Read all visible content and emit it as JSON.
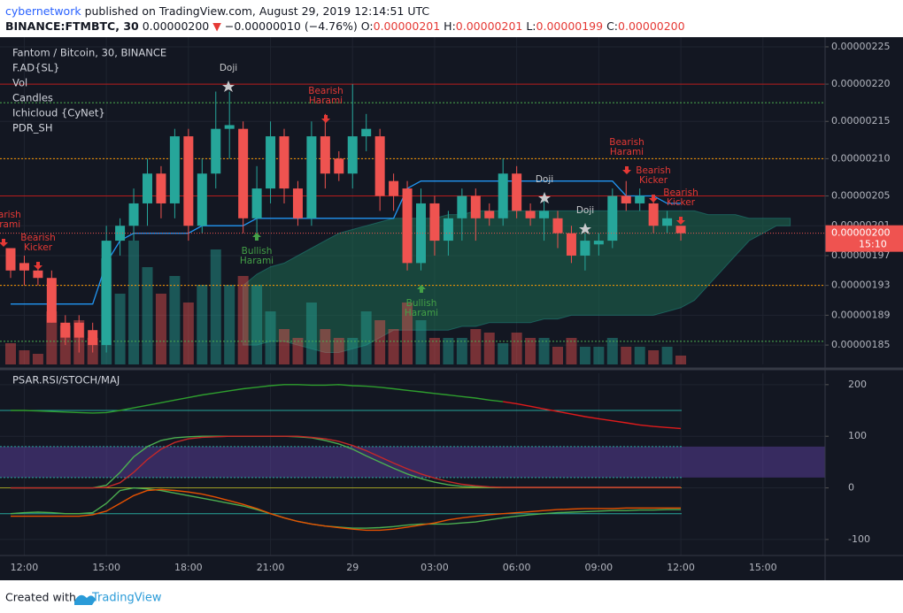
{
  "header": {
    "author": "cybernetwork",
    "published": "published on TradingView.com, August 29, 2019 12:14:51 UTC",
    "symbol": "BINANCE:FTMBTC, 30",
    "last": "0.00000200",
    "arrow": "▼",
    "change": "−0.00000010 (−4.76%)",
    "ohlc": [
      {
        "label": "O:",
        "value": "0.00000201"
      },
      {
        "label": "H:",
        "value": "0.00000201"
      },
      {
        "label": "L:",
        "value": "0.00000199"
      },
      {
        "label": "C:",
        "value": "0.00000200"
      }
    ]
  },
  "footer": {
    "created": "Created with",
    "brand": "TradingView"
  },
  "chart_data": [
    {
      "type": "candlestick",
      "title": "Fantom / Bitcoin, 30, BINANCE",
      "indicators": [
        "F.AD{SL}",
        "Vol",
        "Candles",
        "Ichicloud {CyNet}",
        "PDR_SH"
      ],
      "categories": [
        null,
        "12:00",
        null,
        null,
        null,
        null,
        null,
        "15:00",
        null,
        null,
        null,
        null,
        null,
        "18:00",
        null,
        null,
        null,
        null,
        null,
        "21:00",
        null,
        null,
        null,
        null,
        null,
        "29",
        null,
        null,
        null,
        null,
        null,
        "03:00",
        null,
        null,
        null,
        null,
        null,
        "06:00",
        null,
        null,
        null,
        null,
        null,
        "09:00",
        null,
        null,
        null,
        null,
        null,
        "12:00",
        null,
        null,
        null,
        null,
        null,
        "15:00",
        null,
        null,
        null,
        null
      ],
      "open": [
        1.98e-06,
        1.96e-06,
        1.95e-06,
        1.94e-06,
        1.88e-06,
        1.88e-06,
        1.87e-06,
        1.85e-06,
        1.99e-06,
        2.01e-06,
        2.04e-06,
        2.08e-06,
        2.04e-06,
        2.13e-06,
        2.01e-06,
        2.08e-06,
        2.14e-06,
        2.14e-06,
        2.02e-06,
        2.06e-06,
        2.13e-06,
        2.06e-06,
        2.02e-06,
        2.13e-06,
        2.1e-06,
        2.08e-06,
        2.13e-06,
        2.13e-06,
        2.07e-06,
        2.06e-06,
        1.96e-06,
        2.04e-06,
        1.99e-06,
        2.02e-06,
        2.05e-06,
        2.03e-06,
        2.02e-06,
        2.08e-06,
        2.03e-06,
        2.02e-06,
        2.02e-06,
        2e-06,
        1.97e-06,
        1.985e-06,
        1.99e-06,
        2.05e-06,
        2.04e-06,
        2.04e-06,
        2.01e-06,
        2.01e-06,
        null,
        null,
        null,
        null,
        null,
        null,
        null,
        null,
        null,
        null
      ],
      "high": [
        1.98e-06,
        1.97e-06,
        1.96e-06,
        1.95e-06,
        1.89e-06,
        1.89e-06,
        1.88e-06,
        2.01e-06,
        2.02e-06,
        2.06e-06,
        2.1e-06,
        2.09e-06,
        2.14e-06,
        2.14e-06,
        2.1e-06,
        2.19e-06,
        2.19e-06,
        2.15e-06,
        2.09e-06,
        2.15e-06,
        2.14e-06,
        2.07e-06,
        2.15e-06,
        2.16e-06,
        2.11e-06,
        2.2e-06,
        2.16e-06,
        2.14e-06,
        2.08e-06,
        2.07e-06,
        2.06e-06,
        2.05e-06,
        2.03e-06,
        2.06e-06,
        2.06e-06,
        2.04e-06,
        2.1e-06,
        2.09e-06,
        2.04e-06,
        2.05e-06,
        2.03e-06,
        2.01e-06,
        2e-06,
        2e-06,
        2.06e-06,
        2.07e-06,
        2.06e-06,
        2.05e-06,
        2.03e-06,
        2.01e-06,
        null,
        null,
        null,
        null,
        null,
        null,
        null,
        null,
        null,
        null
      ],
      "low": [
        1.94e-06,
        1.93e-06,
        1.93e-06,
        1.88e-06,
        1.85e-06,
        1.84e-06,
        1.84e-06,
        1.84e-06,
        1.97e-06,
        1.99e-06,
        2.01e-06,
        2.02e-06,
        2.02e-06,
        1.99e-06,
        2e-06,
        2.06e-06,
        2.1e-06,
        2e-06,
        2e-06,
        2.04e-06,
        2.04e-06,
        2.01e-06,
        2.01e-06,
        2.06e-06,
        2.07e-06,
        2.06e-06,
        2.11e-06,
        2.03e-06,
        2.03e-06,
        1.95e-06,
        1.95e-06,
        1.97e-06,
        1.97e-06,
        1.99e-06,
        1.99e-06,
        2.01e-06,
        2.01e-06,
        2.02e-06,
        2.01e-06,
        1.99e-06,
        1.98e-06,
        1.96e-06,
        1.95e-06,
        1.97e-06,
        1.98e-06,
        2.03e-06,
        2.03e-06,
        2e-06,
        2e-06,
        1.99e-06,
        null,
        null,
        null,
        null,
        null,
        null,
        null,
        null,
        null,
        null
      ],
      "close": [
        1.95e-06,
        1.95e-06,
        1.94e-06,
        1.88e-06,
        1.86e-06,
        1.86e-06,
        1.85e-06,
        1.99e-06,
        2.01e-06,
        2.04e-06,
        2.08e-06,
        2.04e-06,
        2.13e-06,
        2.01e-06,
        2.08e-06,
        2.14e-06,
        2.145e-06,
        2.02e-06,
        2.06e-06,
        2.13e-06,
        2.06e-06,
        2.02e-06,
        2.13e-06,
        2.08e-06,
        2.08e-06,
        2.13e-06,
        2.14e-06,
        2.05e-06,
        2.05e-06,
        1.96e-06,
        2.04e-06,
        1.99e-06,
        2.02e-06,
        2.05e-06,
        2.02e-06,
        2.02e-06,
        2.08e-06,
        2.03e-06,
        2.02e-06,
        2.03e-06,
        2e-06,
        1.97e-06,
        1.99e-06,
        1.99e-06,
        2.05e-06,
        2.04e-06,
        2.05e-06,
        2.01e-06,
        2.02e-06,
        2e-06,
        null,
        null,
        null,
        null,
        null,
        null,
        null,
        null,
        null,
        null
      ],
      "up_color": "#26a69a",
      "down_color": "#ef5350",
      "volume": [
        12,
        8,
        6,
        30,
        22,
        25,
        15,
        60,
        40,
        70,
        55,
        40,
        50,
        35,
        45,
        65,
        45,
        50,
        45,
        30,
        20,
        15,
        35,
        20,
        15,
        15,
        30,
        25,
        20,
        35,
        25,
        15,
        15,
        15,
        20,
        18,
        12,
        18,
        15,
        15,
        10,
        15,
        10,
        10,
        15,
        10,
        10,
        8,
        10,
        5,
        null,
        null,
        null,
        null,
        null,
        null,
        null,
        null,
        null,
        null
      ],
      "series": [
        {
          "color": "#2196f3",
          "values": [
            1.905e-06,
            1.905e-06,
            1.905e-06,
            1.905e-06,
            1.905e-06,
            1.905e-06,
            1.905e-06,
            1.96e-06,
            1.99e-06,
            2e-06,
            2e-06,
            2e-06,
            2e-06,
            2e-06,
            2.01e-06,
            2.01e-06,
            2.01e-06,
            2.01e-06,
            2.02e-06,
            2.02e-06,
            2.02e-06,
            2.02e-06,
            2.02e-06,
            2.02e-06,
            2.02e-06,
            2.02e-06,
            2.02e-06,
            2.02e-06,
            2.02e-06,
            2.06e-06,
            2.07e-06,
            2.07e-06,
            2.07e-06,
            2.07e-06,
            2.07e-06,
            2.07e-06,
            2.07e-06,
            2.07e-06,
            2.07e-06,
            2.07e-06,
            2.07e-06,
            2.07e-06,
            2.07e-06,
            2.07e-06,
            2.07e-06,
            2.05e-06,
            2.05e-06,
            2.05e-06,
            2.04e-06,
            2.04e-06,
            null,
            null,
            null,
            null,
            null,
            null,
            null,
            null,
            null,
            null
          ]
        }
      ],
      "cloud": {
        "color": "#1e6b52",
        "upper": [
          null,
          null,
          null,
          null,
          null,
          null,
          null,
          null,
          null,
          null,
          null,
          null,
          null,
          null,
          null,
          null,
          null,
          1.93e-06,
          1.945e-06,
          1.955e-06,
          1.96e-06,
          1.97e-06,
          1.98e-06,
          1.99e-06,
          2e-06,
          2.005e-06,
          2.01e-06,
          2.015e-06,
          2.02e-06,
          2.02e-06,
          2.02e-06,
          2.02e-06,
          2.025e-06,
          2.025e-06,
          2.03e-06,
          2.03e-06,
          2.03e-06,
          2.03e-06,
          2.03e-06,
          2.03e-06,
          2.03e-06,
          2.03e-06,
          2.03e-06,
          2.03e-06,
          2.03e-06,
          2.03e-06,
          2.03e-06,
          2.03e-06,
          2.03e-06,
          2.03e-06,
          2.03e-06,
          2.025e-06,
          2.025e-06,
          2.025e-06,
          2.02e-06,
          2.02e-06,
          2.02e-06,
          2.02e-06,
          null,
          null
        ],
        "lower": [
          null,
          null,
          null,
          null,
          null,
          null,
          null,
          null,
          null,
          null,
          null,
          null,
          null,
          null,
          null,
          null,
          null,
          1.85e-06,
          1.85e-06,
          1.855e-06,
          1.855e-06,
          1.85e-06,
          1.845e-06,
          1.84e-06,
          1.84e-06,
          1.845e-06,
          1.85e-06,
          1.86e-06,
          1.87e-06,
          1.87e-06,
          1.87e-06,
          1.87e-06,
          1.87e-06,
          1.875e-06,
          1.875e-06,
          1.88e-06,
          1.88e-06,
          1.88e-06,
          1.88e-06,
          1.885e-06,
          1.885e-06,
          1.89e-06,
          1.89e-06,
          1.89e-06,
          1.89e-06,
          1.89e-06,
          1.89e-06,
          1.89e-06,
          1.895e-06,
          1.9e-06,
          1.91e-06,
          1.93e-06,
          1.95e-06,
          1.97e-06,
          1.99e-06,
          2e-06,
          2.01e-06,
          2.01e-06,
          null,
          null
        ]
      },
      "levels": [
        {
          "value": 2.2e-06,
          "color": "#b71c1c",
          "dashed": false
        },
        {
          "value": 2.175e-06,
          "color": "#4caf50",
          "dashed": true
        },
        {
          "value": 2.1e-06,
          "color": "#ff9800",
          "dashed": true
        },
        {
          "value": 2.05e-06,
          "color": "#b71c1c",
          "dashed": false
        },
        {
          "value": 1.93e-06,
          "color": "#ff9800",
          "dashed": true
        },
        {
          "value": 1.855e-06,
          "color": "#4caf50",
          "dashed": true
        }
      ],
      "last_price": {
        "value": 2e-06,
        "label": "0.00000200",
        "color": "#ef5350"
      },
      "countdown": "15:10",
      "annotations": [
        {
          "lines": [
            "Doji"
          ]
        },
        {
          "lines": [
            "Doji"
          ]
        },
        {
          "lines": [
            "Doji"
          ]
        },
        {
          "lines": [
            "Bearish",
            "Harami"
          ]
        },
        {
          "lines": [
            "Bearish",
            "Harami"
          ]
        },
        {
          "lines": [
            "Bearish",
            "Kicker"
          ]
        },
        {
          "lines": [
            "Bearish",
            "Kicker"
          ]
        },
        {
          "lines": [
            "Bearish",
            "Kicker"
          ]
        },
        {
          "lines": [
            "Bearish",
            "Harami"
          ]
        },
        {
          "lines": [
            "Bullish",
            "Harami"
          ]
        },
        {
          "lines": [
            "Bullish",
            "Harami"
          ]
        }
      ],
      "ylim": [
        1.824e-06,
        2.263e-06
      ],
      "yticks": [
        {
          "value": 2.25e-06,
          "label": "0.00000225"
        },
        {
          "value": 2.2e-06,
          "label": "0.00000220"
        },
        {
          "value": 2.15e-06,
          "label": "0.00000215"
        },
        {
          "value": 2.1e-06,
          "label": "0.00000210"
        },
        {
          "value": 2.05e-06,
          "label": "0.00000205"
        },
        {
          "value": 2.01e-06,
          "label": "0.00000201"
        },
        {
          "value": 1.97e-06,
          "label": "0.00000197"
        },
        {
          "value": 1.93e-06,
          "label": "0.00000193"
        },
        {
          "value": 1.89e-06,
          "label": "0.00000189"
        },
        {
          "value": 1.85e-06,
          "label": "0.00000185"
        }
      ],
      "grid": true
    },
    {
      "type": "line",
      "title": "PSAR.RSI/STOCH/MAJ",
      "ylim": [
        -131,
        222
      ],
      "yticks": [
        200,
        100,
        0,
        -100
      ],
      "band": [
        20,
        80
      ],
      "band_color": "#5c3f9e",
      "hlines": [
        {
          "value": 150,
          "color": "#26a69a",
          "dashed": false
        },
        {
          "value": 80,
          "color": "#26a69a",
          "dashed": true
        },
        {
          "value": 20,
          "color": "#26a69a",
          "dashed": true
        },
        {
          "value": 0,
          "color": "#9e9d24",
          "dashed": false
        },
        {
          "value": -50,
          "color": "#26a69a",
          "dashed": false
        }
      ],
      "series": [
        {
          "color": "#2e9e2e",
          "values": [
            150,
            150,
            149,
            148,
            147,
            146,
            145,
            146,
            150,
            155,
            160,
            165,
            170,
            175,
            180,
            184,
            188,
            192,
            195,
            198,
            200,
            200,
            199,
            199,
            200,
            198,
            197,
            195,
            192,
            189,
            186,
            183,
            180,
            177,
            174,
            170,
            167,
            null,
            null,
            null,
            null,
            null,
            null,
            null,
            null,
            null,
            null,
            null,
            null,
            null
          ]
        },
        {
          "color": "#e01b1b",
          "values": [
            null,
            null,
            null,
            null,
            null,
            null,
            null,
            null,
            null,
            null,
            null,
            null,
            null,
            null,
            null,
            null,
            null,
            null,
            null,
            null,
            null,
            null,
            null,
            null,
            null,
            null,
            null,
            null,
            null,
            null,
            null,
            null,
            null,
            null,
            null,
            null,
            167,
            163,
            158,
            153,
            148,
            143,
            138,
            134,
            130,
            126,
            122,
            119,
            117,
            115
          ]
        },
        {
          "color": "#4caf50",
          "values": [
            0,
            0,
            0,
            0,
            0,
            0,
            0,
            5,
            30,
            60,
            80,
            92,
            97,
            99,
            100,
            100,
            100,
            100,
            100,
            100,
            100,
            99,
            97,
            92,
            85,
            75,
            62,
            50,
            38,
            27,
            18,
            11,
            6,
            3,
            2,
            1,
            1,
            1,
            1,
            1,
            1,
            1,
            1,
            1,
            1,
            1,
            1,
            1,
            1,
            1
          ]
        },
        {
          "color": "#c62828",
          "values": [
            0,
            0,
            0,
            0,
            0,
            0,
            0,
            1,
            10,
            30,
            55,
            75,
            88,
            95,
            98,
            99,
            100,
            100,
            100,
            100,
            100,
            100,
            98,
            95,
            90,
            82,
            72,
            60,
            48,
            37,
            27,
            19,
            12,
            7,
            4,
            2,
            1,
            1,
            1,
            1,
            1,
            1,
            1,
            1,
            1,
            1,
            1,
            1,
            1,
            1
          ]
        },
        {
          "color": "#4caf50",
          "values": [
            -50,
            -48,
            -47,
            -48,
            -50,
            -50,
            -48,
            -30,
            -5,
            0,
            -2,
            -5,
            -10,
            -15,
            -20,
            -25,
            -30,
            -35,
            -42,
            -50,
            -58,
            -65,
            -70,
            -74,
            -76,
            -78,
            -78,
            -77,
            -75,
            -72,
            -70,
            -70,
            -70,
            -68,
            -66,
            -62,
            -58,
            -55,
            -52,
            -50,
            -48,
            -47,
            -46,
            -45,
            -44,
            -44,
            -43,
            -43,
            -42,
            -42
          ]
        },
        {
          "color": "#e65100",
          "values": [
            -55,
            -55,
            -55,
            -55,
            -55,
            -55,
            -52,
            -45,
            -30,
            -15,
            -5,
            -3,
            -5,
            -8,
            -12,
            -18,
            -25,
            -32,
            -40,
            -50,
            -58,
            -65,
            -70,
            -74,
            -77,
            -80,
            -82,
            -82,
            -80,
            -76,
            -72,
            -68,
            -62,
            -58,
            -55,
            -52,
            -50,
            -48,
            -46,
            -44,
            -42,
            -41,
            -40,
            -40,
            -40,
            -39,
            -39,
            -39,
            -39,
            -39
          ]
        }
      ],
      "grid": true
    }
  ]
}
